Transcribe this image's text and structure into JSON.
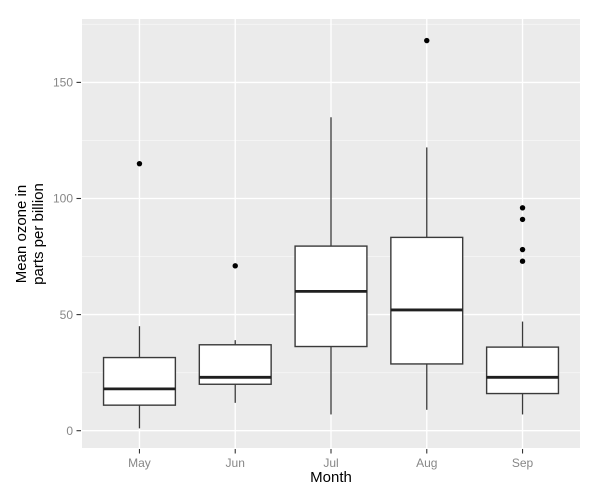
{
  "chart_data": {
    "type": "boxplot",
    "title": "",
    "xlabel": "Month",
    "ylabel": "Mean ozone in parts per billion",
    "ylabel_lines": [
      "Mean ozone in",
      "parts per billion"
    ],
    "categories": [
      "May",
      "Jun",
      "Jul",
      "Aug",
      "Sep"
    ],
    "y_major_ticks": [
      0,
      50,
      100,
      150
    ],
    "y_minor_ticks": [
      25,
      75,
      125,
      175
    ],
    "ylim": [
      -7.45,
      177.3
    ],
    "grid": true,
    "legend": "none",
    "series": [
      {
        "category": "May",
        "whisker_low": 1,
        "q1": 11,
        "median": 18,
        "q3": 31.5,
        "whisker_high": 45,
        "outliers": [
          115
        ]
      },
      {
        "category": "Jun",
        "whisker_low": 12,
        "q1": 20,
        "median": 23,
        "q3": 37,
        "whisker_high": 39,
        "outliers": [
          71
        ]
      },
      {
        "category": "Jul",
        "whisker_low": 7,
        "q1": 36.25,
        "median": 60,
        "q3": 79.5,
        "whisker_high": 135,
        "outliers": []
      },
      {
        "category": "Aug",
        "whisker_low": 9,
        "q1": 28.75,
        "median": 52,
        "q3": 83.25,
        "whisker_high": 122,
        "outliers": [
          168
        ]
      },
      {
        "category": "Sep",
        "whisker_low": 7,
        "q1": 16,
        "median": 23,
        "q3": 36,
        "whisker_high": 47,
        "outliers": [
          73,
          78,
          91,
          96
        ]
      }
    ],
    "colors": {
      "page_background": "#FFFFFF",
      "panel_background": "#EBEBEB",
      "grid_major": "#FFFFFF",
      "grid_minor": "#F6F6F6",
      "box_stroke": "#3A3A3A",
      "box_fill": "#FFFFFF",
      "median_stroke": "#1F1F1F",
      "outlier_fill": "#000000",
      "tick_mark": "#333333",
      "tick_label": "#878787",
      "axis_title": "#000000"
    }
  }
}
